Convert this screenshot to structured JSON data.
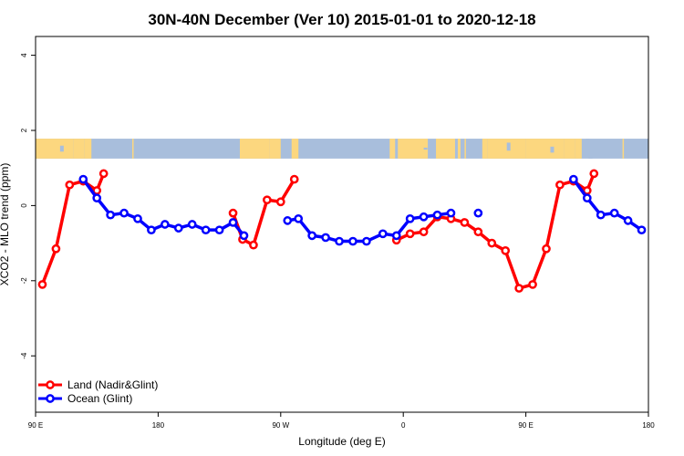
{
  "chart_data": {
    "type": "line",
    "title": "30N-40N December (Ver 10)   2015-01-01 to 2020-12-18",
    "xlabel": "Longitude (deg E)",
    "ylabel": "XCO2 - MLO trend (ppm)",
    "x_ticks": [
      {
        "value": 90,
        "label": "90 E"
      },
      {
        "value": 180,
        "label": "180"
      },
      {
        "value": 270,
        "label": "90 W"
      },
      {
        "value": 360,
        "label": "0"
      },
      {
        "value": 450,
        "label": "90 E"
      },
      {
        "value": 540,
        "label": "180"
      }
    ],
    "y_ticks": [
      {
        "value": -4,
        "label": "-4"
      },
      {
        "value": -2,
        "label": "-2"
      },
      {
        "value": 0,
        "label": "0"
      },
      {
        "value": 2,
        "label": "2"
      },
      {
        "value": 4,
        "label": "4"
      }
    ],
    "xlim": [
      90,
      540
    ],
    "ylim": [
      -5.5,
      4.5
    ],
    "map_strip": {
      "ymin": 1.25,
      "ymax": 1.78,
      "ocean_color": "#a8bedc",
      "land_color": "#fcd77f"
    },
    "legend_position": "bottom-left",
    "series": [
      {
        "name": "Land (Nadir&Glint)",
        "color": "#ff0000",
        "segments": [
          [
            [
              95,
              -2.1
            ],
            [
              105,
              -1.15
            ],
            [
              115,
              0.55
            ],
            [
              125,
              0.65
            ],
            [
              135,
              0.4
            ],
            [
              140,
              0.85
            ]
          ],
          [
            [
              235,
              -0.2
            ],
            [
              242,
              -0.9
            ],
            [
              250,
              -1.05
            ],
            [
              260,
              0.15
            ],
            [
              270,
              0.1
            ],
            [
              280,
              0.7
            ]
          ],
          [
            [
              355,
              -0.92
            ],
            [
              365,
              -0.75
            ],
            [
              375,
              -0.7
            ],
            [
              385,
              -0.3
            ],
            [
              395,
              -0.35
            ],
            [
              405,
              -0.45
            ],
            [
              415,
              -0.7
            ],
            [
              425,
              -1.0
            ],
            [
              435,
              -1.2
            ],
            [
              445,
              -2.2
            ],
            [
              455,
              -2.1
            ],
            [
              465,
              -1.15
            ],
            [
              475,
              0.55
            ],
            [
              485,
              0.65
            ],
            [
              495,
              0.4
            ],
            [
              500,
              0.85
            ]
          ]
        ]
      },
      {
        "name": "Ocean (Glint)",
        "color": "#0000ff",
        "segments": [
          [
            [
              125,
              0.7
            ],
            [
              135,
              0.2
            ],
            [
              145,
              -0.25
            ],
            [
              155,
              -0.2
            ],
            [
              165,
              -0.35
            ],
            [
              175,
              -0.65
            ],
            [
              185,
              -0.5
            ],
            [
              195,
              -0.6
            ],
            [
              205,
              -0.5
            ],
            [
              215,
              -0.65
            ],
            [
              225,
              -0.65
            ],
            [
              235,
              -0.45
            ],
            [
              243,
              -0.8
            ]
          ],
          [
            [
              275,
              -0.4
            ],
            [
              283,
              -0.35
            ],
            [
              293,
              -0.8
            ],
            [
              303,
              -0.85
            ],
            [
              313,
              -0.95
            ],
            [
              323,
              -0.95
            ],
            [
              333,
              -0.95
            ],
            [
              345,
              -0.75
            ],
            [
              355,
              -0.8
            ],
            [
              365,
              -0.35
            ],
            [
              375,
              -0.3
            ],
            [
              385,
              -0.25
            ],
            [
              395,
              -0.2
            ]
          ],
          [
            [
              415,
              -0.2
            ]
          ],
          [
            [
              485,
              0.7
            ],
            [
              495,
              0.2
            ],
            [
              505,
              -0.25
            ],
            [
              515,
              -0.2
            ],
            [
              525,
              -0.4
            ],
            [
              535,
              -0.65
            ]
          ]
        ]
      }
    ]
  }
}
